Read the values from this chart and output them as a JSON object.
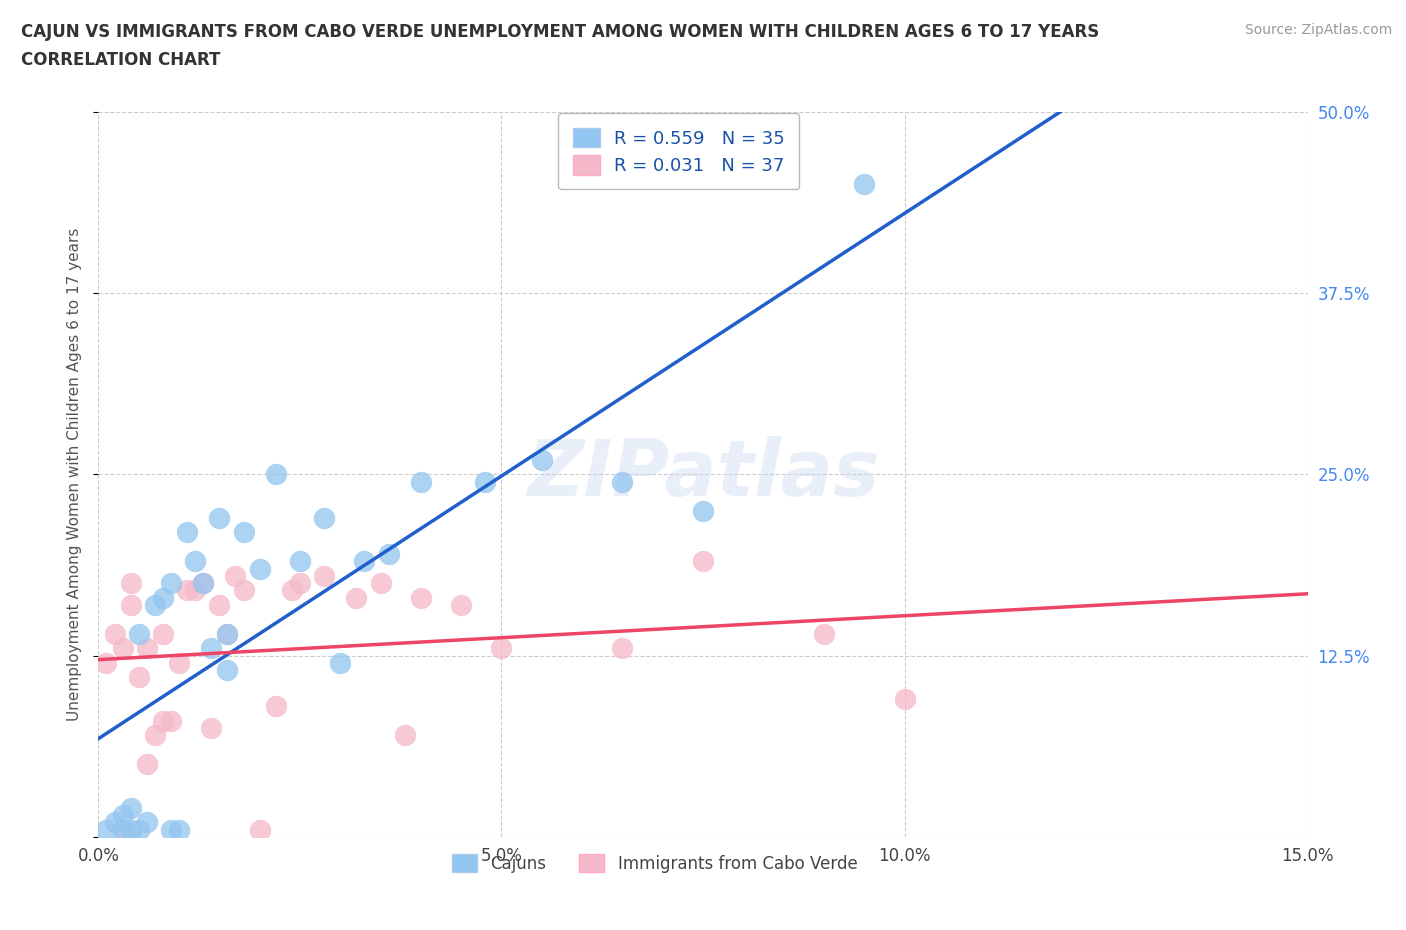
{
  "title_line1": "CAJUN VS IMMIGRANTS FROM CABO VERDE UNEMPLOYMENT AMONG WOMEN WITH CHILDREN AGES 6 TO 17 YEARS",
  "title_line2": "CORRELATION CHART",
  "source_text": "Source: ZipAtlas.com",
  "ylabel": "Unemployment Among Women with Children Ages 6 to 17 years",
  "xlim": [
    0.0,
    0.15
  ],
  "ylim": [
    0.0,
    0.5
  ],
  "xticks": [
    0.0,
    0.05,
    0.1,
    0.15
  ],
  "xtick_labels": [
    "0.0%",
    "5.0%",
    "10.0%",
    "15.0%"
  ],
  "yticks": [
    0.0,
    0.125,
    0.25,
    0.375,
    0.5
  ],
  "ytick_labels_right": [
    "",
    "12.5%",
    "25.0%",
    "37.5%",
    "50.0%"
  ],
  "cajun_R": 0.559,
  "cajun_N": 35,
  "cabo_verde_R": 0.031,
  "cabo_verde_N": 37,
  "cajun_color": "#92C5F0",
  "cabo_verde_color": "#F5B8C8",
  "cajun_line_color": "#2060CC",
  "cabo_verde_line_color": "#EE4466",
  "legend_R_color": "#1A52A8",
  "legend_N_color": "#2E8B00",
  "background_color": "#FFFFFF",
  "grid_color": "#CCCCCC",
  "watermark": "ZIPatlas",
  "cajun_x": [
    0.001,
    0.002,
    0.003,
    0.003,
    0.004,
    0.004,
    0.005,
    0.005,
    0.006,
    0.007,
    0.008,
    0.009,
    0.009,
    0.01,
    0.011,
    0.012,
    0.013,
    0.014,
    0.015,
    0.016,
    0.016,
    0.018,
    0.02,
    0.022,
    0.025,
    0.028,
    0.03,
    0.033,
    0.036,
    0.04,
    0.048,
    0.055,
    0.065,
    0.075,
    0.095
  ],
  "cajun_y": [
    0.005,
    0.01,
    0.005,
    0.015,
    0.02,
    0.005,
    0.14,
    0.005,
    0.01,
    0.16,
    0.165,
    0.005,
    0.175,
    0.005,
    0.21,
    0.19,
    0.175,
    0.13,
    0.22,
    0.115,
    0.14,
    0.21,
    0.185,
    0.25,
    0.19,
    0.22,
    0.12,
    0.19,
    0.195,
    0.245,
    0.245,
    0.26,
    0.245,
    0.225,
    0.45
  ],
  "cabo_x": [
    0.001,
    0.002,
    0.003,
    0.003,
    0.004,
    0.004,
    0.005,
    0.006,
    0.006,
    0.007,
    0.008,
    0.008,
    0.009,
    0.01,
    0.011,
    0.012,
    0.013,
    0.014,
    0.015,
    0.016,
    0.017,
    0.018,
    0.02,
    0.022,
    0.024,
    0.025,
    0.028,
    0.032,
    0.035,
    0.038,
    0.04,
    0.045,
    0.05,
    0.065,
    0.075,
    0.09,
    0.1
  ],
  "cabo_y": [
    0.12,
    0.14,
    0.13,
    0.005,
    0.175,
    0.16,
    0.11,
    0.13,
    0.05,
    0.07,
    0.08,
    0.14,
    0.08,
    0.12,
    0.17,
    0.17,
    0.175,
    0.075,
    0.16,
    0.14,
    0.18,
    0.17,
    0.005,
    0.09,
    0.17,
    0.175,
    0.18,
    0.165,
    0.175,
    0.07,
    0.165,
    0.16,
    0.13,
    0.13,
    0.19,
    0.14,
    0.095
  ]
}
